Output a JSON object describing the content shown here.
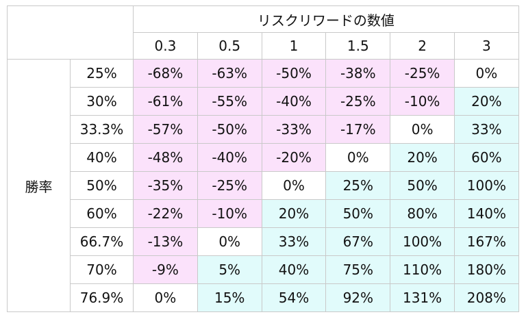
{
  "header": {
    "title": "リスクリワードの数値",
    "columns": [
      "0.3",
      "0.5",
      "1",
      "1.5",
      "2",
      "3"
    ]
  },
  "row_group_label": "勝率",
  "rows": [
    {
      "label": "25%",
      "cells": [
        "-68%",
        "-63%",
        "-50%",
        "-38%",
        "-25%",
        "0%"
      ]
    },
    {
      "label": "30%",
      "cells": [
        "-61%",
        "-55%",
        "-40%",
        "-25%",
        "-10%",
        "20%"
      ]
    },
    {
      "label": "33.3%",
      "cells": [
        "-57%",
        "-50%",
        "-33%",
        "-17%",
        "0%",
        "33%"
      ]
    },
    {
      "label": "40%",
      "cells": [
        "-48%",
        "-40%",
        "-20%",
        "0%",
        "20%",
        "60%"
      ]
    },
    {
      "label": "50%",
      "cells": [
        "-35%",
        "-25%",
        "0%",
        "25%",
        "50%",
        "100%"
      ]
    },
    {
      "label": "60%",
      "cells": [
        "-22%",
        "-10%",
        "20%",
        "50%",
        "80%",
        "140%"
      ]
    },
    {
      "label": "66.7%",
      "cells": [
        "-13%",
        "0%",
        "33%",
        "67%",
        "100%",
        "167%"
      ]
    },
    {
      "label": "70%",
      "cells": [
        "-9%",
        "5%",
        "40%",
        "75%",
        "110%",
        "180%"
      ]
    },
    {
      "label": "76.9%",
      "cells": [
        "0%",
        "15%",
        "54%",
        "92%",
        "131%",
        "208%"
      ]
    }
  ],
  "colors": {
    "negative_fill": "#fbe2fb",
    "positive_fill": "#e1fbfb",
    "zero_fill": "#ffffff",
    "border": "#c9c9c9"
  }
}
